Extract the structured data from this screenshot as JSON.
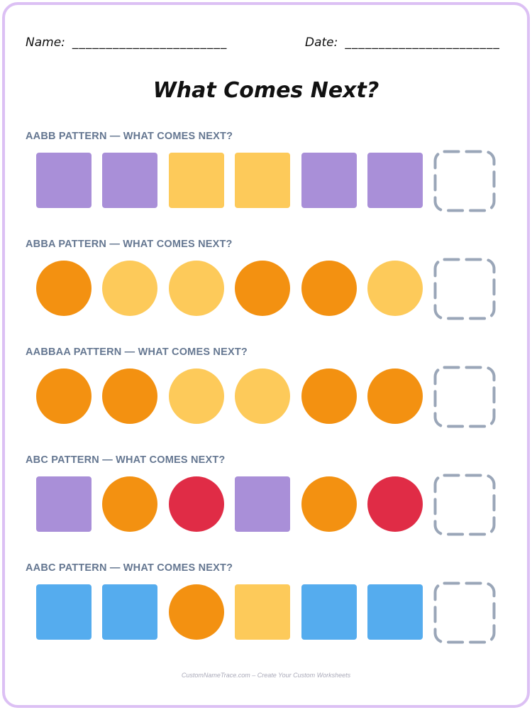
{
  "header": {
    "name_label": "Name:",
    "name_blank": "_______________________",
    "date_label": "Date:",
    "date_blank": "_______________________"
  },
  "title": "What Comes Next?",
  "colors": {
    "purple": "#a98fd8",
    "light_orange": "#fdca5a",
    "orange": "#f39111",
    "red": "#e02c46",
    "blue": "#55acee",
    "dashed_box": "#9aa6b8",
    "frame": "#dcc0f4",
    "label": "#657791"
  },
  "patterns": [
    {
      "label": "AABB PATTERN — WHAT COMES NEXT?",
      "items": [
        {
          "shape": "square",
          "color": "purple"
        },
        {
          "shape": "square",
          "color": "purple"
        },
        {
          "shape": "square",
          "color": "light_orange"
        },
        {
          "shape": "square",
          "color": "light_orange"
        },
        {
          "shape": "square",
          "color": "purple"
        },
        {
          "shape": "square",
          "color": "purple"
        }
      ]
    },
    {
      "label": "ABBA PATTERN — WHAT COMES NEXT?",
      "items": [
        {
          "shape": "circle",
          "color": "orange"
        },
        {
          "shape": "circle",
          "color": "light_orange"
        },
        {
          "shape": "circle",
          "color": "light_orange"
        },
        {
          "shape": "circle",
          "color": "orange"
        },
        {
          "shape": "circle",
          "color": "orange"
        },
        {
          "shape": "circle",
          "color": "light_orange"
        }
      ]
    },
    {
      "label": "AABBAA PATTERN — WHAT COMES NEXT?",
      "items": [
        {
          "shape": "circle",
          "color": "orange"
        },
        {
          "shape": "circle",
          "color": "orange"
        },
        {
          "shape": "circle",
          "color": "light_orange"
        },
        {
          "shape": "circle",
          "color": "light_orange"
        },
        {
          "shape": "circle",
          "color": "orange"
        },
        {
          "shape": "circle",
          "color": "orange"
        }
      ]
    },
    {
      "label": "ABC PATTERN — WHAT COMES NEXT?",
      "items": [
        {
          "shape": "square",
          "color": "purple"
        },
        {
          "shape": "circle",
          "color": "orange"
        },
        {
          "shape": "circle",
          "color": "red"
        },
        {
          "shape": "square",
          "color": "purple"
        },
        {
          "shape": "circle",
          "color": "orange"
        },
        {
          "shape": "circle",
          "color": "red"
        }
      ]
    },
    {
      "label": "AABC PATTERN — WHAT COMES NEXT?",
      "items": [
        {
          "shape": "square",
          "color": "blue"
        },
        {
          "shape": "square",
          "color": "blue"
        },
        {
          "shape": "circle",
          "color": "orange"
        },
        {
          "shape": "square",
          "color": "light_orange"
        },
        {
          "shape": "square",
          "color": "blue"
        },
        {
          "shape": "square",
          "color": "blue"
        }
      ]
    }
  ],
  "footer": "CustomNameTrace.com – Create Your Custom Worksheets"
}
